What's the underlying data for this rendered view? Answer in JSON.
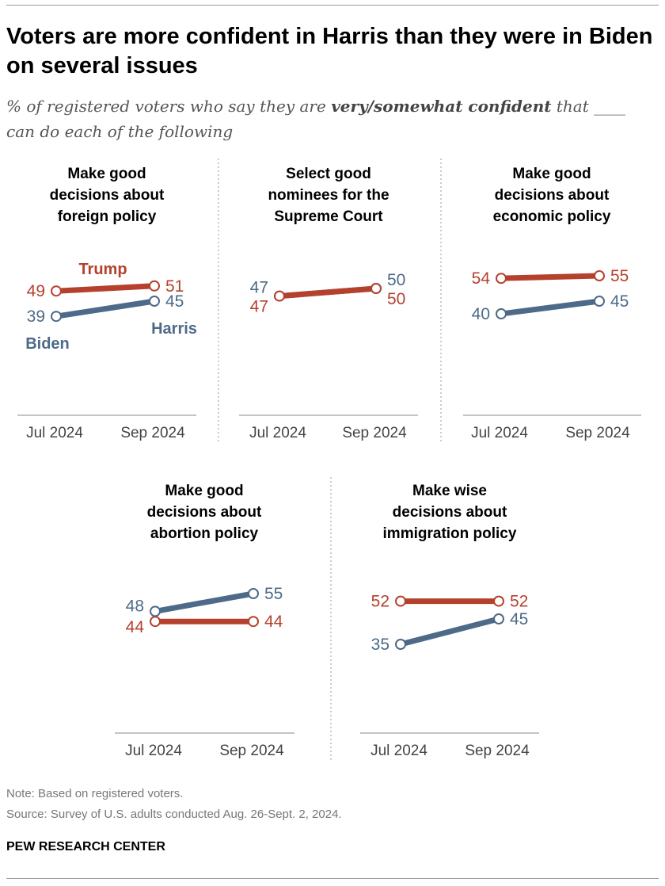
{
  "title": "Voters are more confident in Harris than they were in Biden on several issues",
  "subtitle": {
    "pre": "% of registered voters who say they are ",
    "bold": "very/somewhat confident",
    "post": " that ____ can do each of the following"
  },
  "colors": {
    "trump": "#b5412d",
    "dem": "#4d6a88"
  },
  "chart_data": {
    "type": "line",
    "x": [
      "Jul 2024",
      "Sep 2024"
    ],
    "series_names": {
      "rep": "Trump",
      "dem_jul": "Biden",
      "dem_sep": "Harris"
    },
    "panels": [
      {
        "title": [
          "Make good",
          "decisions about",
          "foreign policy"
        ],
        "trump": [
          49,
          51
        ],
        "dem": [
          39,
          45
        ]
      },
      {
        "title": [
          "Select good",
          "nominees for the",
          "Supreme Court"
        ],
        "trump": [
          47,
          50
        ],
        "dem": [
          47,
          50
        ]
      },
      {
        "title": [
          "Make good",
          "decisions about",
          "economic policy"
        ],
        "trump": [
          54,
          55
        ],
        "dem": [
          40,
          45
        ]
      },
      {
        "title": [
          "Make good",
          "decisions about",
          "abortion policy"
        ],
        "trump": [
          44,
          44
        ],
        "dem": [
          48,
          55
        ]
      },
      {
        "title": [
          "Make wise",
          "decisions about",
          "immigration policy"
        ],
        "trump": [
          52,
          52
        ],
        "dem": [
          35,
          45
        ]
      }
    ]
  },
  "note": "Note: Based on registered voters.",
  "source": "Source: Survey of U.S. adults conducted Aug. 26-Sept. 2, 2024.",
  "brand": "PEW RESEARCH CENTER"
}
